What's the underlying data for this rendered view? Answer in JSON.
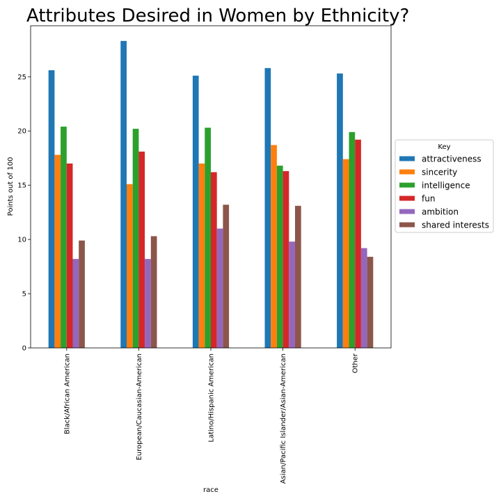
{
  "chart_data": {
    "type": "bar",
    "title": "Attributes Desired in Women by Ethnicity?",
    "xlabel": "race",
    "ylabel": "Points out of 100",
    "ylim": [
      0,
      29.7
    ],
    "yticks": [
      0,
      5,
      10,
      15,
      20,
      25
    ],
    "grid": false,
    "legend_title": "Key",
    "legend_placement": "center-right outside",
    "categories": [
      "Black/African American",
      "European/Caucasian-American",
      "Latino/Hispanic American",
      "Asian/Pacific Islander/Asian-American",
      "Other"
    ],
    "series": [
      {
        "name": "attractiveness",
        "color": "#1f77b4",
        "values": [
          25.6,
          28.3,
          25.1,
          25.8,
          25.3
        ]
      },
      {
        "name": "sincerity",
        "color": "#ff7f0e",
        "values": [
          17.8,
          15.1,
          17.0,
          18.7,
          17.4
        ]
      },
      {
        "name": "intelligence",
        "color": "#2ca02c",
        "values": [
          20.4,
          20.2,
          20.3,
          16.8,
          19.9
        ]
      },
      {
        "name": "fun",
        "color": "#d62728",
        "values": [
          17.0,
          18.1,
          16.2,
          16.3,
          19.2
        ]
      },
      {
        "name": "ambition",
        "color": "#9467bd",
        "values": [
          8.2,
          8.2,
          11.0,
          9.8,
          9.2
        ]
      },
      {
        "name": "shared interests",
        "color": "#8c564b",
        "values": [
          9.9,
          10.3,
          13.2,
          13.1,
          8.4
        ]
      }
    ]
  }
}
